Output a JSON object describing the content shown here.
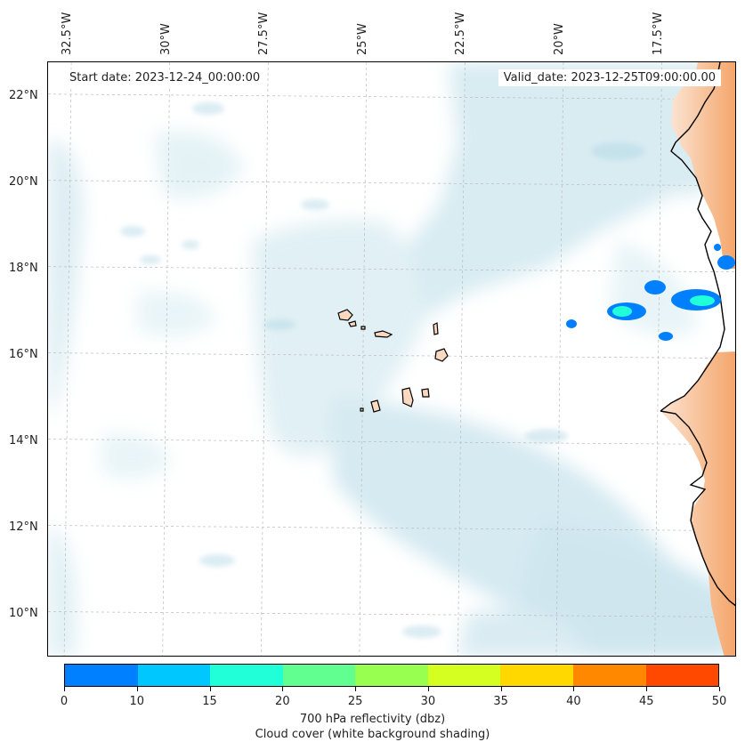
{
  "map": {
    "start_date": "Start date: 2023-12-24_00:00:00",
    "valid_date": "Valid_date: 2023-12-25T09:00:00.00",
    "lon_labels": [
      "32.5°W",
      "30°W",
      "27.5°W",
      "25°W",
      "22.5°W",
      "20°W",
      "17.5°W"
    ],
    "lat_labels": [
      "22°N",
      "20°N",
      "18°N",
      "16°N",
      "14°N",
      "12°N",
      "10°N"
    ],
    "lon_values": [
      -32.5,
      -30,
      -27.5,
      -25,
      -22.5,
      -20,
      -17.5
    ],
    "lat_values": [
      22,
      20,
      18,
      16,
      14,
      12,
      10
    ],
    "lon_range": [
      -33,
      -15.5
    ],
    "lat_range": [
      9,
      22.8
    ],
    "features": [
      "Cape Verde islands",
      "West African coastline",
      "cloud cover shading",
      "reflectivity cells"
    ]
  },
  "colorbar": {
    "ticks": [
      "0",
      "10",
      "15",
      "20",
      "25",
      "30",
      "35",
      "40",
      "45",
      "50"
    ],
    "bounds": [
      0,
      10,
      15,
      20,
      25,
      30,
      35,
      40,
      45,
      50
    ],
    "colors": [
      "#0080ff",
      "#00c8ff",
      "#20ffd8",
      "#60ff90",
      "#98ff50",
      "#d4ff20",
      "#ffd800",
      "#ff8800",
      "#ff4800"
    ],
    "label_line1": "700 hPa reflectivity (dbz)",
    "label_line2": "Cloud cover (white background shading)"
  }
}
